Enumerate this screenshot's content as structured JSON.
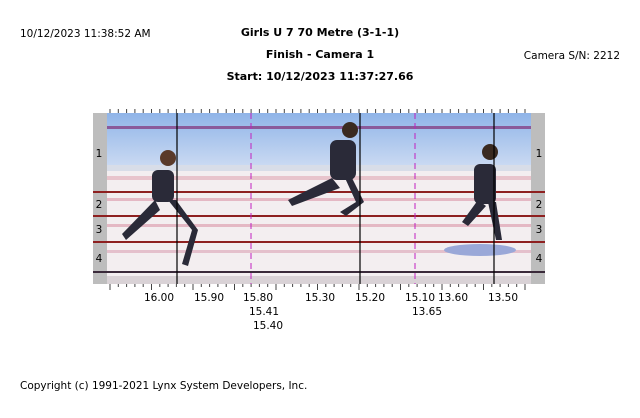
{
  "header": {
    "timestamp": "10/12/2023 11:38:52 AM",
    "event": "Girls U 7 70 Metre (3-1-1)",
    "camera": "Finish - Camera 1",
    "start": "Start: 10/12/2023 11:37:27.66",
    "serial": "Camera S/N: 2212"
  },
  "lanes": [
    "1",
    "2",
    "3",
    "4"
  ],
  "time_scale": [
    "16.00",
    "15.90",
    "15.80",
    "15.30",
    "15.20",
    "15.10",
    "13.60",
    "13.50"
  ],
  "finish_times": [
    "15.41",
    "15.40",
    "13.65"
  ],
  "footer": "Copyright (c) 1991-2021 Lynx System Developers, Inc."
}
